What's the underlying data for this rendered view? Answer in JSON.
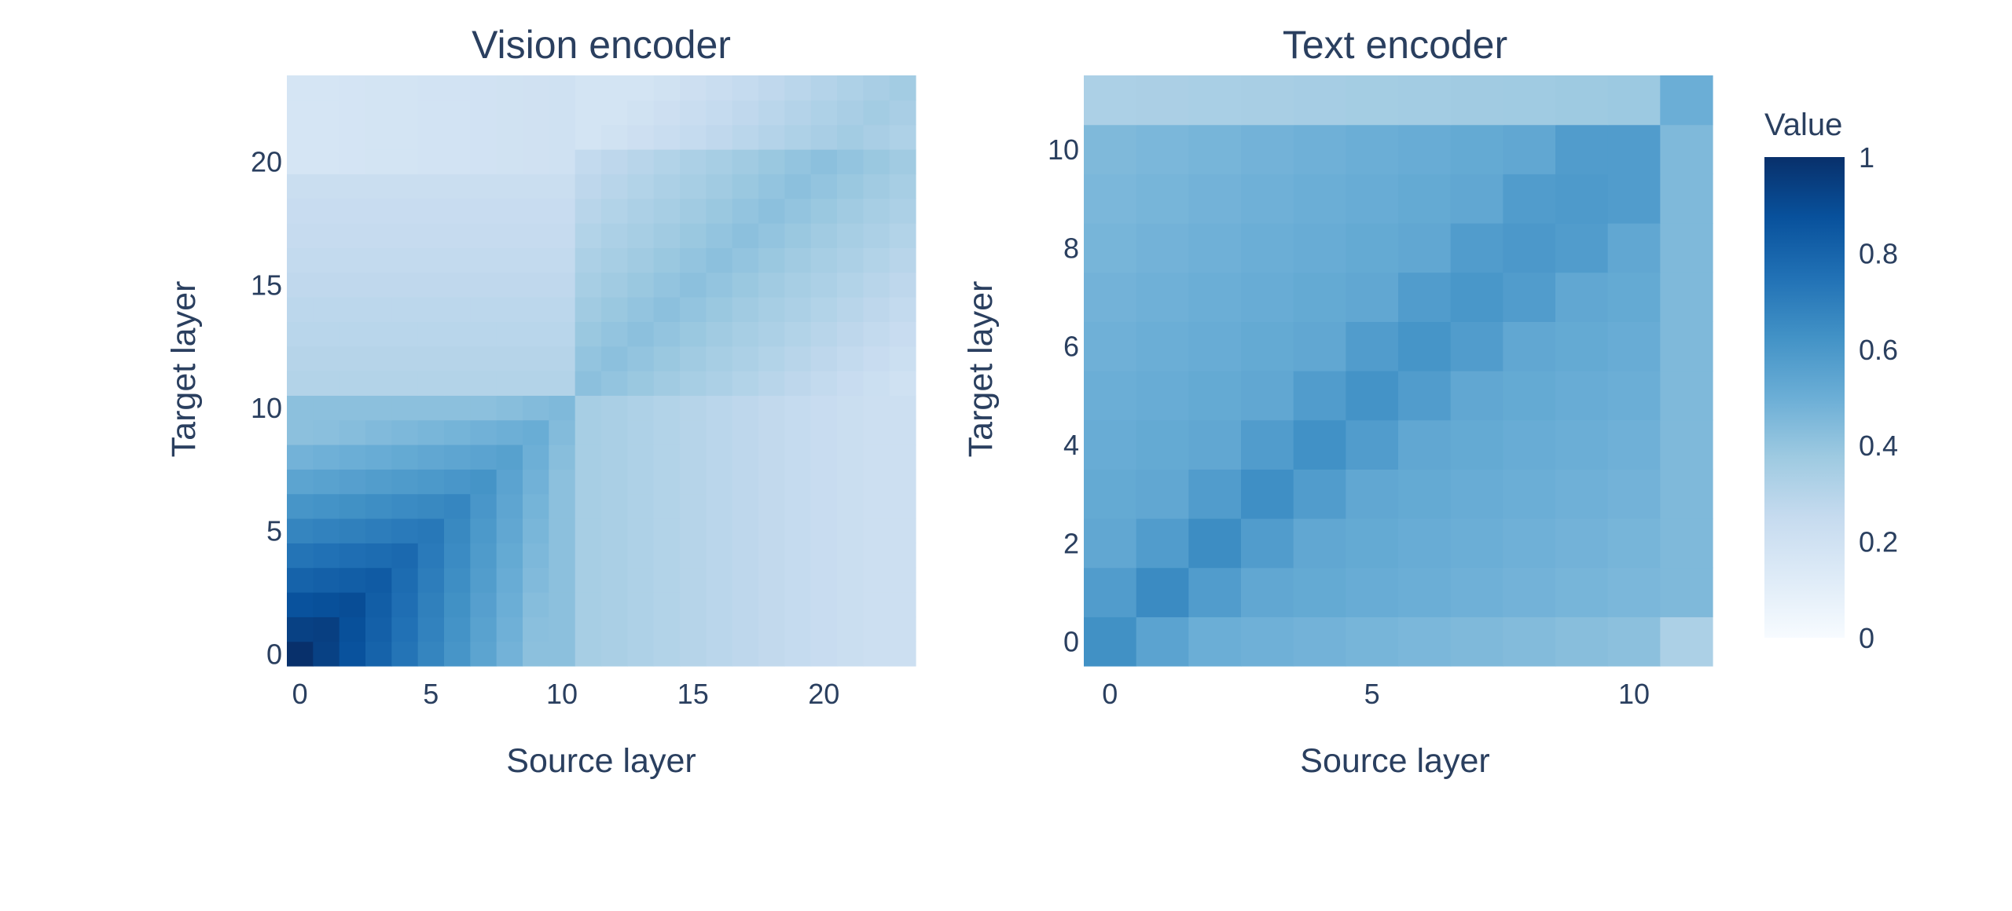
{
  "colorscale": [
    "#f7fbff",
    "#deebf7",
    "#c6dbef",
    "#9ecae1",
    "#6baed6",
    "#4292c6",
    "#2171b5",
    "#08519c",
    "#08306b"
  ],
  "colorbar": {
    "title": "Value",
    "ticks": [
      "0",
      "0.2",
      "0.4",
      "0.6",
      "0.8",
      "1"
    ],
    "range": [
      0,
      1
    ]
  },
  "chart_data": [
    {
      "type": "heatmap",
      "title": "Vision encoder",
      "xlabel": "Source layer",
      "ylabel": "Target layer",
      "n": 24,
      "xticks": [
        "0",
        "5",
        "10",
        "15",
        "20"
      ],
      "yticks": [
        "0",
        "5",
        "10",
        "15",
        "20"
      ],
      "matrix_note": "z[i][j] approx: dense block on layers 0-10 (0.45-1.0 decaying from origin), lighter 0.2-0.3 background, diagonal band ~0.4 in upper layers",
      "values": {
        "diag_low": 1.0,
        "low_block_min": 0.45,
        "background": 0.25,
        "upper_diag": 0.42,
        "top_rows": 0.2
      }
    },
    {
      "type": "heatmap",
      "title": "Text encoder",
      "xlabel": "Source layer",
      "ylabel": "Target layer",
      "n": 12,
      "xticks": [
        "0",
        "5",
        "10"
      ],
      "yticks": [
        "0",
        "2",
        "4",
        "6",
        "8",
        "10"
      ],
      "values": {
        "diag_low": 0.65,
        "diag_mid": 0.58,
        "background": 0.48,
        "last_col": 0.42,
        "top_row": 0.35
      }
    }
  ]
}
